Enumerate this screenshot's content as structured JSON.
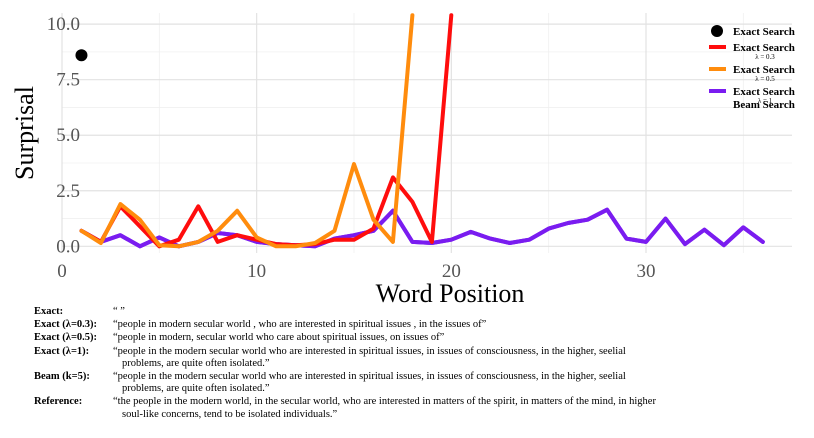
{
  "chart_data": {
    "type": "line",
    "xlabel": "Word Position",
    "ylabel": "Surprisal",
    "xlim": [
      0,
      37.5
    ],
    "ylim": [
      -0.3,
      10.5
    ],
    "x_ticks": [
      0,
      10,
      20,
      30
    ],
    "x_tick_labels": [
      "0",
      "10",
      "20",
      "30"
    ],
    "y_ticks": [
      0,
      2.5,
      5,
      7.5,
      10
    ],
    "y_tick_labels": [
      "0.0",
      "2.5",
      "5.0",
      "7.5",
      "10.0"
    ],
    "grid": true,
    "legend_position": "top-right",
    "series": [
      {
        "key": "exact",
        "name": "Exact Search",
        "sub": "",
        "type": "point",
        "color": "#000000",
        "x": [
          1
        ],
        "y": [
          8.6
        ]
      },
      {
        "key": "exact03",
        "name": "Exact Search",
        "sub": "λ = 0.3",
        "type": "line",
        "color": "#ff0d0d",
        "x": [
          1,
          2,
          3,
          4,
          5,
          6,
          7,
          8,
          9,
          10,
          11,
          12,
          13,
          14,
          15,
          16,
          17,
          18,
          19,
          20
        ],
        "y": [
          0.7,
          0.2,
          1.8,
          0.9,
          0.0,
          0.3,
          1.8,
          0.2,
          0.5,
          0.3,
          0.1,
          0.05,
          0.1,
          0.3,
          0.3,
          0.8,
          3.1,
          2.0,
          0.2,
          10.4
        ]
      },
      {
        "key": "exact05",
        "name": "Exact Search",
        "sub": "λ = 0.5",
        "type": "line",
        "color": "#ff8c0d",
        "x": [
          1,
          2,
          3,
          4,
          5,
          6,
          7,
          8,
          9,
          10,
          11,
          12,
          13,
          14,
          15,
          16,
          17,
          18
        ],
        "y": [
          0.7,
          0.15,
          1.9,
          1.2,
          0.05,
          0.0,
          0.2,
          0.7,
          1.6,
          0.4,
          0.0,
          0.0,
          0.15,
          0.7,
          3.7,
          1.2,
          0.2,
          10.4
        ]
      },
      {
        "key": "exact1",
        "name": "Exact Search",
        "sub": "λ = 1",
        "type": "line",
        "color": "#7a1cf0",
        "x": [
          1,
          2,
          3,
          4,
          5,
          6,
          7,
          8,
          9,
          10,
          11,
          12,
          13,
          14,
          15,
          16,
          17,
          18,
          19,
          20,
          21,
          22,
          23,
          24,
          25,
          26,
          27,
          28,
          29,
          30,
          31,
          32,
          33,
          34,
          35,
          36
        ],
        "y": [
          0.7,
          0.2,
          0.5,
          0.0,
          0.4,
          0.0,
          0.2,
          0.6,
          0.5,
          0.2,
          0.1,
          0.05,
          0.0,
          0.35,
          0.5,
          0.7,
          1.6,
          0.2,
          0.15,
          0.3,
          0.65,
          0.35,
          0.15,
          0.3,
          0.8,
          1.05,
          1.2,
          1.65,
          0.35,
          0.2,
          1.25,
          0.1,
          0.75,
          0.05,
          0.85,
          0.2
        ]
      },
      {
        "key": "beam",
        "name": "Beam Search",
        "sub": "",
        "type": "line",
        "color": "#7a1cf0",
        "x": [
          1,
          2,
          3,
          4,
          5,
          6,
          7,
          8,
          9,
          10,
          11,
          12,
          13,
          14,
          15,
          16,
          17,
          18,
          19,
          20,
          21,
          22,
          23,
          24,
          25,
          26,
          27,
          28,
          29,
          30,
          31,
          32,
          33,
          34,
          35,
          36
        ],
        "y": [
          0.7,
          0.2,
          0.5,
          0.0,
          0.4,
          0.0,
          0.2,
          0.6,
          0.5,
          0.2,
          0.1,
          0.05,
          0.0,
          0.35,
          0.5,
          0.7,
          1.6,
          0.2,
          0.15,
          0.3,
          0.65,
          0.35,
          0.15,
          0.3,
          0.8,
          1.05,
          1.2,
          1.65,
          0.35,
          0.2,
          1.25,
          0.1,
          0.75,
          0.05,
          0.85,
          0.2
        ]
      }
    ]
  },
  "annotations": [
    {
      "label": "Exact:",
      "text": "“ ”",
      "cont": ""
    },
    {
      "label": "Exact (λ=0.3):",
      "text": "“people in modern secular world , who are interested in spiritual issues , in the issues of”",
      "cont": ""
    },
    {
      "label": "Exact (λ=0.5):",
      "text": "“people in modern, secular world who care about spiritual issues, on issues of”",
      "cont": ""
    },
    {
      "label": "Exact (λ=1):",
      "text": "“people in the modern secular world who are interested in spiritual issues, in issues of consciousness, in the higher, seelial",
      "cont": "problems, are quite often isolated.”"
    },
    {
      "label": "Beam (k=5):",
      "text": "“people in the modern secular world who are interested in spiritual issues, in issues of consciousness, in the higher, seelial",
      "cont": "problems, are quite often isolated.”"
    },
    {
      "label": "Reference:",
      "text": "“the people in the modern world, in the secular world, who are interested in matters of the spirit, in matters of the mind, in higher",
      "cont": "soul-like concerns, tend to be isolated individuals.”"
    }
  ]
}
